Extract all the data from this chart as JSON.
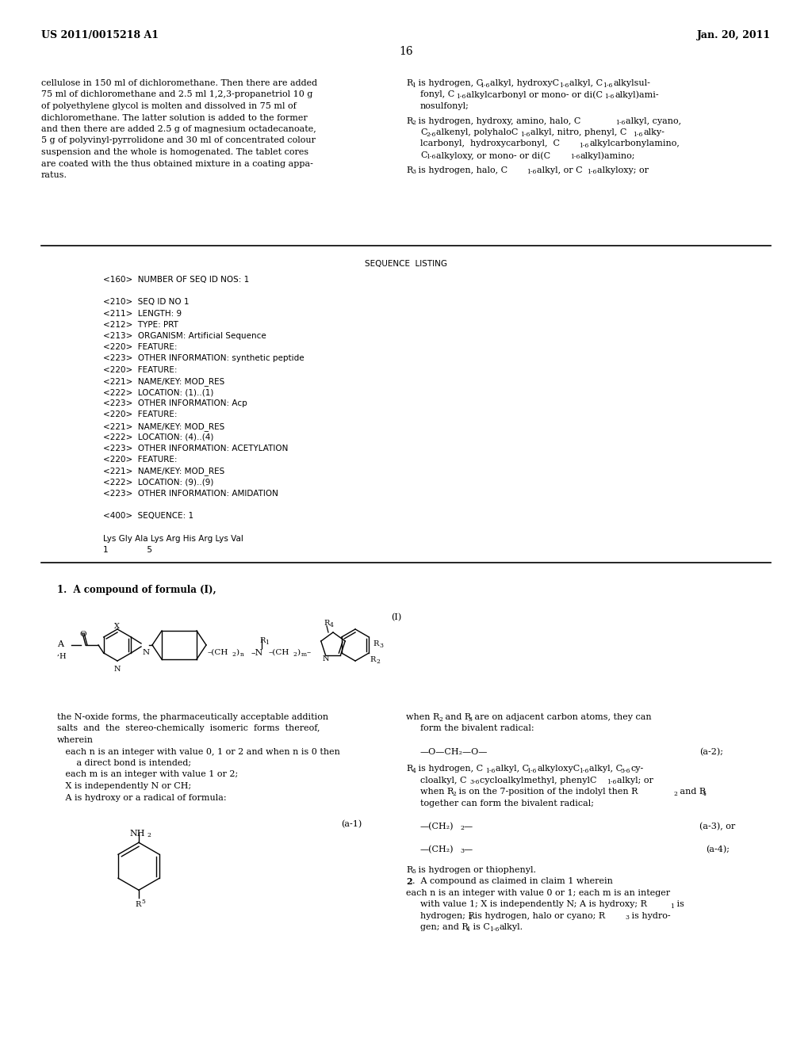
{
  "bg_color": "#ffffff",
  "header_left": "US 2011/0015218 A1",
  "header_right": "Jan. 20, 2011",
  "page_number": "16"
}
